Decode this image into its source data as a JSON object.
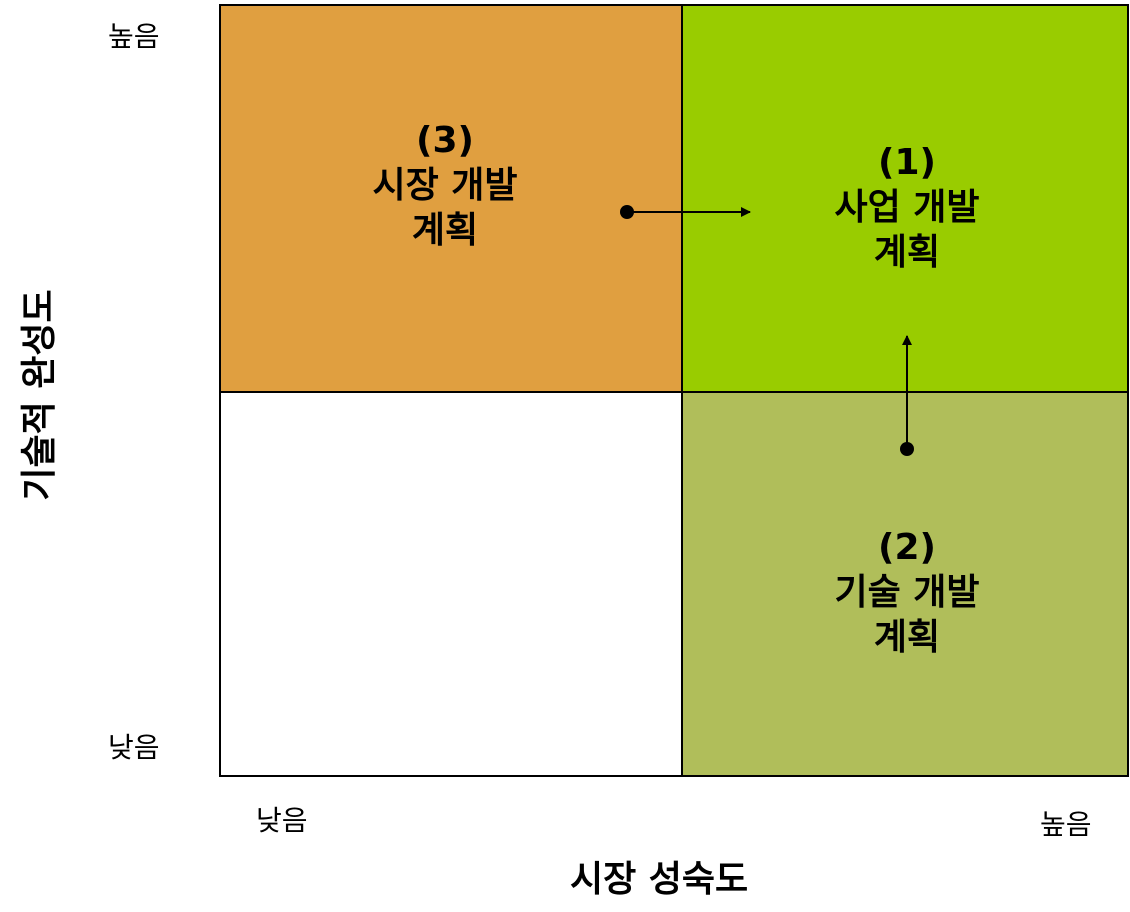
{
  "axes": {
    "x_title": "시장 성숙도",
    "y_title": "기술적 완성도",
    "x_low": "낮음",
    "x_high": "높음",
    "y_low": "낮음",
    "y_high": "높음"
  },
  "quadrants": {
    "top_left": {
      "number": "(3)",
      "line1": "시장 개발",
      "line2": "계획",
      "color": "#E09F40"
    },
    "top_right": {
      "number": "(1)",
      "line1": "사업 개발",
      "line2": "계획",
      "color": "#99CC00"
    },
    "bottom_right": {
      "number": "(2)",
      "line1": "기술 개발",
      "line2": "계획",
      "color": "#B0BE5A"
    },
    "bottom_left": {
      "color": "#FFFFFF"
    }
  },
  "arrows": [
    {
      "from": "top_left",
      "to": "top_right"
    },
    {
      "from": "bottom_right",
      "to": "top_right"
    }
  ]
}
